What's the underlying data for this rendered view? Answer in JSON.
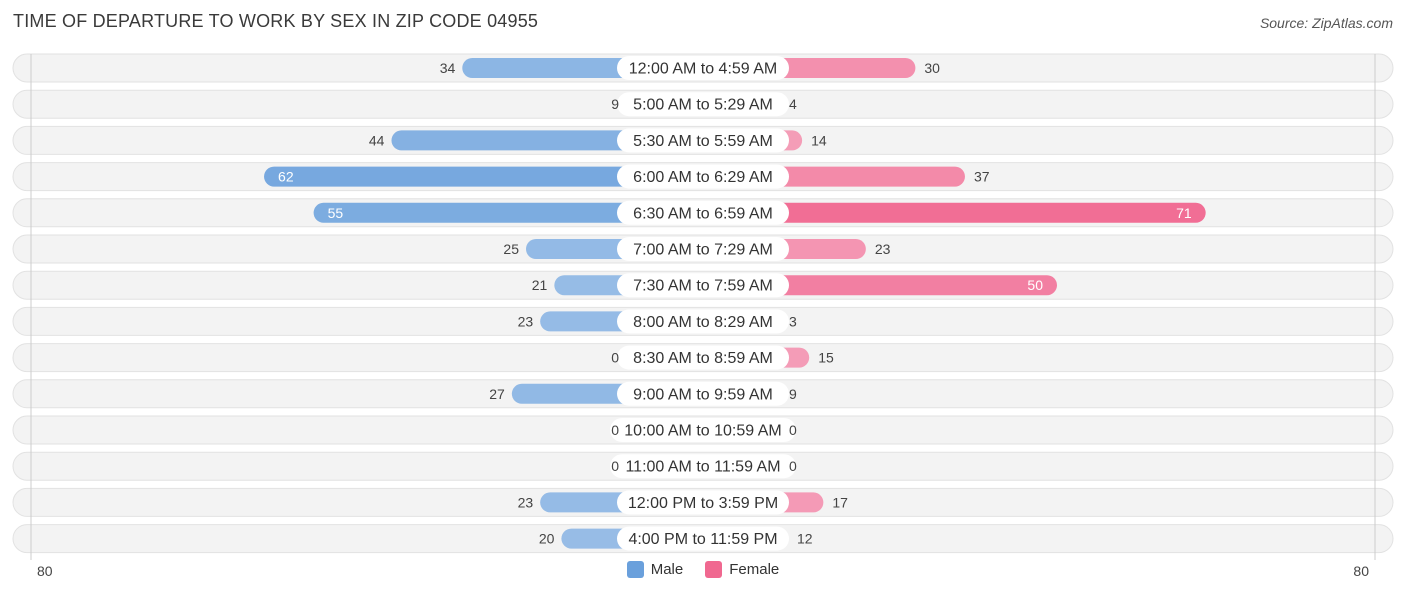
{
  "title": "TIME OF DEPARTURE TO WORK BY SEX IN ZIP CODE 04955",
  "source": "Source: ZipAtlas.com",
  "legend": {
    "male": "Male",
    "female": "Female"
  },
  "axis": {
    "left_label": "80",
    "right_label": "80"
  },
  "colors": {
    "male": "#6aa0dc",
    "male_light": "#a6c6ea",
    "female": "#f06890",
    "female_light": "#f5a8c0",
    "row_bg": "#efefef"
  },
  "chart_data": {
    "type": "bar",
    "orientation": "horizontal-diverging",
    "title": "TIME OF DEPARTURE TO WORK BY SEX IN ZIP CODE 04955",
    "xlim": [
      -80,
      80
    ],
    "categories": [
      "12:00 AM to 4:59 AM",
      "5:00 AM to 5:29 AM",
      "5:30 AM to 5:59 AM",
      "6:00 AM to 6:29 AM",
      "6:30 AM to 6:59 AM",
      "7:00 AM to 7:29 AM",
      "7:30 AM to 7:59 AM",
      "8:00 AM to 8:29 AM",
      "8:30 AM to 8:59 AM",
      "9:00 AM to 9:59 AM",
      "10:00 AM to 10:59 AM",
      "11:00 AM to 11:59 AM",
      "12:00 PM to 3:59 PM",
      "4:00 PM to 11:59 PM"
    ],
    "series": [
      {
        "name": "Male",
        "values": [
          34,
          9,
          44,
          62,
          55,
          25,
          21,
          23,
          0,
          27,
          0,
          0,
          23,
          20
        ]
      },
      {
        "name": "Female",
        "values": [
          30,
          4,
          14,
          37,
          71,
          23,
          50,
          3,
          15,
          9,
          0,
          0,
          17,
          12
        ]
      }
    ],
    "legend_position": "bottom-center"
  }
}
